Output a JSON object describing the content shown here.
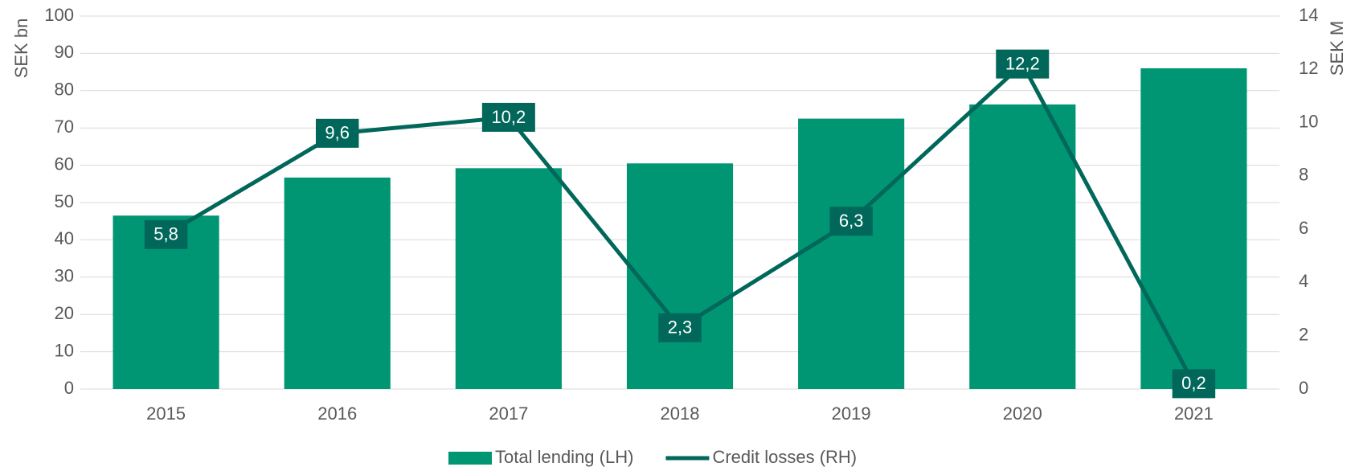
{
  "chart_data": {
    "type": "bar_line",
    "categories": [
      "2015",
      "2016",
      "2017",
      "2018",
      "2019",
      "2020",
      "2021"
    ],
    "series": [
      {
        "name": "Total lending (LH)",
        "type": "bar",
        "color": "#009673",
        "values": [
          46.5,
          56.7,
          59.2,
          60.5,
          72.5,
          76.3,
          86
        ]
      },
      {
        "name": "Credit losses (RH)",
        "type": "line",
        "axis": "y2",
        "color": "#00675a",
        "values": [
          5.8,
          9.6,
          10.2,
          2.3,
          6.3,
          12.2,
          0.2
        ],
        "value_labels": [
          "5,8",
          "9,6",
          "10,2",
          "2,3",
          "6,3",
          "12,2",
          "0,2"
        ]
      }
    ],
    "ylabel": "SEK bn",
    "y2label": "SEK M",
    "ylim": [
      0,
      100
    ],
    "yticks": [
      0,
      10,
      20,
      30,
      40,
      50,
      60,
      70,
      80,
      90,
      100
    ],
    "y2lim": [
      0,
      14
    ],
    "y2ticks": [
      0,
      2,
      4,
      6,
      8,
      10,
      12,
      14
    ],
    "grid": true,
    "legend": "bottom"
  }
}
